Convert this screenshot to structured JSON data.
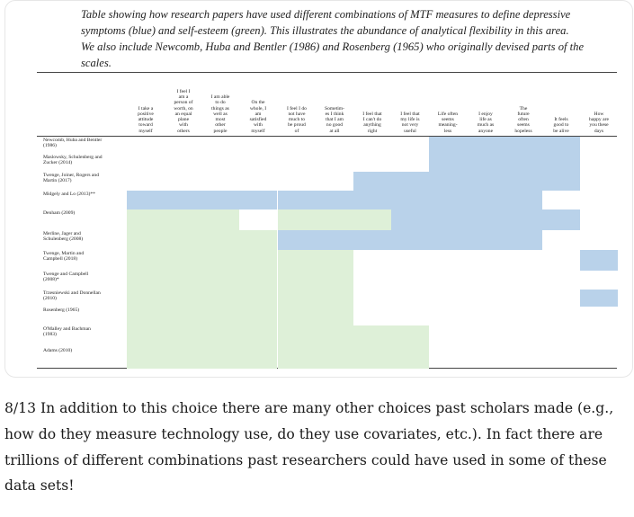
{
  "caption": "Table showing how research papers have used different combinations of MTF measures to define depressive symptoms (blue) and self-esteem (green). This illustrates the abundance of analytical flexibility in this area. We also include Newcomb, Huba and Bentler (1986) and Rosenberg (1965) who originally devised parts of the scales.",
  "columns": [
    "I take a\npositive\nattitude\ntoward\nmyself",
    "I feel I\nam a\nperson of\nworth, on\nan equal\nplane\nwith\nothers",
    "I am able\nto do\nthings as\nwell as\nmost\nother\npeople",
    "On the\nwhole, I\nam\nsatisfied\nwith\nmyself",
    "I feel I do\nnot have\nmuch to\nbe proud\nof",
    "Sometim-\nes I think\nthat I am\nno good\nat all",
    "I feel that\nI can't do\nanything\nright",
    "I feel that\nmy life is\nnot very\nuseful",
    "Life often\nseems\nmeaning-\nless",
    "I enjoy\nlife as\nmuch as\nanyone",
    "The\nfuture\noften\nseems\nhopeless",
    "It feels\ngood to\nbe alive",
    "How\nhappy are\nyou these\ndays"
  ],
  "rows": [
    {
      "label": "Newcomb, Huba and Bentler\n(1986)",
      "cells": [
        "",
        "",
        "",
        "",
        "",
        "",
        "",
        "",
        "B",
        "B",
        "B",
        "B",
        ""
      ]
    },
    {
      "label": "Maslowsky, Schulenberg and\nZucker (2014)",
      "cells": [
        "",
        "",
        "",
        "",
        "",
        "",
        "",
        "",
        "B",
        "B",
        "B",
        "B",
        ""
      ]
    },
    {
      "label": "Twenge, Joiner, Rogers and\nMartin (2017)",
      "cells": [
        "",
        "",
        "",
        "",
        "",
        "",
        "B",
        "B",
        "B",
        "B",
        "B",
        "B",
        ""
      ]
    },
    {
      "label": "Midgely and Lo (2013)**",
      "cells": [
        "B",
        "B",
        "B",
        "B",
        "B",
        "B",
        "B",
        "B",
        "B",
        "B",
        "B",
        "",
        ""
      ]
    },
    {
      "label": "Denham (2009)",
      "cells": [
        "G",
        "G",
        "G",
        "",
        "G",
        "G",
        "G",
        "B",
        "B",
        "B",
        "B",
        "B",
        ""
      ]
    },
    {
      "label": "Merline, Jager and\nSchulenberg (2008)",
      "cells": [
        "G",
        "G",
        "G",
        "G",
        "B",
        "B",
        "B",
        "B",
        "B",
        "B",
        "B",
        "",
        ""
      ]
    },
    {
      "label": "Twenge, Martin and\nCampbell (2018)",
      "cells": [
        "G",
        "G",
        "G",
        "G",
        "G",
        "G",
        "",
        "",
        "",
        "",
        "",
        "",
        "B"
      ]
    },
    {
      "label": "Twenge and Campbell\n(2008)*",
      "cells": [
        "G",
        "G",
        "G",
        "G",
        "G",
        "G",
        "",
        "",
        "",
        "",
        "",
        "",
        ""
      ]
    },
    {
      "label": "Trzesniewski and Donnellan\n(2010)",
      "cells": [
        "G",
        "G",
        "G",
        "G",
        "G",
        "G",
        "",
        "",
        "",
        "",
        "",
        "",
        "B"
      ]
    },
    {
      "label": "Rosenberg (1965)",
      "cells": [
        "G",
        "G",
        "G",
        "G",
        "G",
        "G",
        "",
        "",
        "",
        "",
        "",
        "",
        ""
      ]
    },
    {
      "label": "O'Malley and Bachman\n(1983)",
      "cells": [
        "G",
        "G",
        "G",
        "G",
        "G",
        "G",
        "G",
        "G",
        "",
        "",
        "",
        "",
        ""
      ]
    },
    {
      "label": "Adams (2010)",
      "cells": [
        "G",
        "G",
        "G",
        "G",
        "G",
        "G",
        "G",
        "G",
        "",
        "",
        "",
        "",
        ""
      ]
    }
  ],
  "colors": {
    "depressive_blue": "#b9d2ea",
    "self_esteem_green": "#def0d8"
  },
  "tweet_text": "8/13 In addition to this choice there are many other choices past scholars made (e.g., how do they measure technology use, do they use covariates, etc.). In fact there are trillions of different combinations past researchers could have used in some of these data sets!"
}
